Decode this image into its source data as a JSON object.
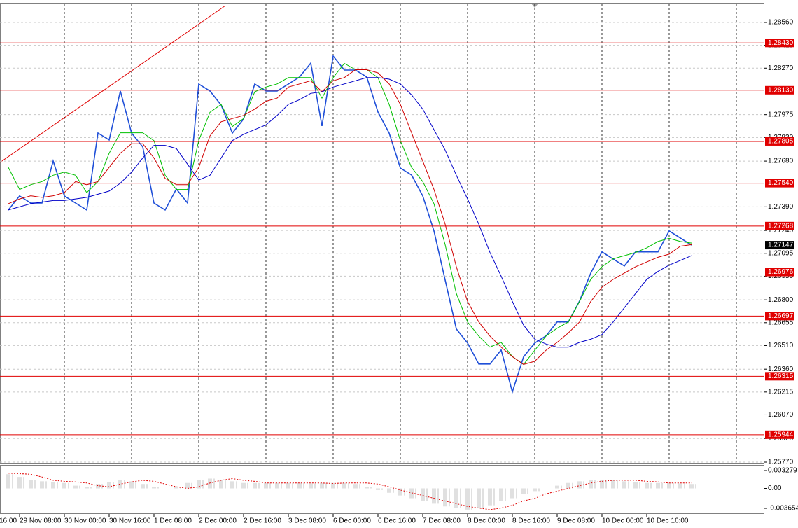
{
  "chart_data": [
    {
      "type": "line",
      "categories": [
        null,
        "29 Nov 08:00",
        null,
        null,
        null,
        "30 Nov 00:00",
        null,
        null,
        null,
        "30 Nov 16:00",
        null,
        null,
        null,
        "1 Dec 08:00",
        null,
        null,
        null,
        "2 Dec 00:00",
        null,
        null,
        null,
        "2 Dec 16:00",
        null,
        null,
        null,
        "3 Dec 08:00",
        null,
        null,
        null,
        "6 Dec 00:00",
        null,
        null,
        null,
        "6 Dec 16:00",
        null,
        null,
        null,
        "7 Dec 08:00",
        null,
        null,
        null,
        "8 Dec 00:00",
        null,
        null,
        null,
        "8 Dec 16:00",
        null,
        null,
        null,
        "9 Dec 08:00",
        null,
        null,
        null,
        "10 Dec 00:00",
        null,
        null,
        null,
        "10 Dec 16:00",
        null,
        null,
        null,
        null
      ],
      "x_edge_label": "16:00",
      "series": [
        {
          "color": "#1f4fd8",
          "values": [
            1.2737,
            1.27459,
            1.27414,
            1.27414,
            1.27681,
            1.27459,
            1.27414,
            1.2737,
            1.27858,
            1.27814,
            1.28125,
            1.27858,
            1.2777,
            1.27414,
            1.2737,
            1.27503,
            1.27414,
            1.28169,
            1.28125,
            1.28036,
            1.27858,
            1.27947,
            1.28169,
            1.28125,
            1.28125,
            1.28169,
            1.28214,
            1.28302,
            1.27903,
            1.28347,
            1.28258,
            1.28258,
            1.28214,
            1.27992,
            1.27858,
            1.27636,
            1.27592,
            1.27459,
            1.27237,
            1.26926,
            1.26615,
            1.26526,
            1.26393,
            1.26393,
            1.26482,
            1.26216,
            1.26438,
            1.26526,
            1.26571,
            1.2666,
            1.2666,
            1.26793,
            1.2697,
            1.27104,
            1.27059,
            1.27015,
            1.27104,
            1.27104,
            1.27104,
            1.27237,
            1.27192,
            1.27147
          ]
        },
        {
          "color": "#00c000",
          "values": [
            1.2764,
            1.275,
            1.2753,
            1.2755,
            1.2759,
            1.2761,
            1.2759,
            1.2748,
            1.2755,
            1.2773,
            1.2786,
            1.2786,
            1.2786,
            1.2781,
            1.2759,
            1.275,
            1.275,
            1.2781,
            1.2799,
            1.2804,
            1.279,
            1.2795,
            1.2812,
            1.2815,
            1.2817,
            1.2821,
            1.2821,
            1.2821,
            1.2808,
            1.2821,
            1.283,
            1.2826,
            1.2826,
            1.2821,
            1.2804,
            1.2781,
            1.2764,
            1.2755,
            1.2741,
            1.2715,
            1.2684,
            1.2666,
            1.2657,
            1.265,
            1.2653,
            1.2644,
            1.2639,
            1.2648,
            1.2657,
            1.2662,
            1.2666,
            1.2679,
            1.2693,
            1.2701,
            1.2706,
            1.2708,
            1.271,
            1.2713,
            1.2717,
            1.2719,
            1.2717,
            1.2716
          ]
        },
        {
          "color": "#d00000",
          "values": [
            1.2741,
            1.2744,
            1.2746,
            1.2745,
            1.2746,
            1.2748,
            1.2755,
            1.2753,
            1.2755,
            1.2764,
            1.2773,
            1.2779,
            1.2779,
            1.277,
            1.2757,
            1.2753,
            1.2753,
            1.2764,
            1.2784,
            1.2793,
            1.2795,
            1.2797,
            1.2801,
            1.2806,
            1.2808,
            1.2815,
            1.2817,
            1.2819,
            1.2812,
            1.2819,
            1.2821,
            1.2826,
            1.2826,
            1.2824,
            1.2817,
            1.2804,
            1.2786,
            1.2768,
            1.275,
            1.2728,
            1.2701,
            1.2679,
            1.2666,
            1.2657,
            1.265,
            1.2644,
            1.2639,
            1.2641,
            1.2648,
            1.2653,
            1.2659,
            1.2666,
            1.2679,
            1.2688,
            1.2693,
            1.2697,
            1.2701,
            1.2704,
            1.2707,
            1.2709,
            1.2714,
            1.2715
          ]
        },
        {
          "color": "#0000c8",
          "values": [
            1.2737,
            1.2739,
            1.2741,
            1.2742,
            1.2743,
            1.2743,
            1.2744,
            1.2745,
            1.2747,
            1.2749,
            1.2754,
            1.2761,
            1.277,
            1.2778,
            1.2778,
            1.2776,
            1.2766,
            1.2756,
            1.2759,
            1.277,
            1.2781,
            1.2785,
            1.2788,
            1.2791,
            1.2797,
            1.2804,
            1.2807,
            1.2811,
            1.2812,
            1.2815,
            1.2817,
            1.2819,
            1.2821,
            1.2821,
            1.282,
            1.2817,
            1.281,
            1.2801,
            1.2788,
            1.2775,
            1.2759,
            1.2744,
            1.2728,
            1.271,
            1.2695,
            1.2679,
            1.2664,
            1.2655,
            1.2652,
            1.265,
            1.265,
            1.2653,
            1.2655,
            1.2658,
            1.2666,
            1.2675,
            1.2684,
            1.2693,
            1.2698,
            1.2702,
            1.2705,
            1.2708
          ]
        }
      ],
      "ylim": [
        1.2577,
        1.2868
      ],
      "yticks": [
        {
          "value": 1.2856,
          "label": "1.28560"
        },
        1.28415,
        {
          "value": 1.2827,
          "label": "1.28270"
        },
        1.27975,
        {
          "value": 1.2783,
          "label": "1.27830"
        },
        {
          "value": 1.2768,
          "label": "1.27680"
        },
        {
          "value": 1.2739,
          "label": "1.27390"
        },
        {
          "value": 1.2724,
          "label": "1.27240"
        },
        1.27095,
        {
          "value": 1.2695,
          "label": "1.26950"
        },
        {
          "value": 1.268,
          "label": "1.26800"
        },
        1.26655,
        {
          "value": 1.2651,
          "label": "1.26510"
        },
        {
          "value": 1.2636,
          "label": "1.26360"
        },
        1.26215,
        {
          "value": 1.2607,
          "label": "1.26070"
        },
        {
          "value": 1.2592,
          "label": "1.25920"
        },
        {
          "value": 1.2577,
          "label": "1.25770"
        }
      ],
      "grid": true,
      "level_color": "#e00000",
      "levels": [
        {
          "value": 1.2843,
          "label": "1.28430"
        },
        {
          "value": 1.2813,
          "label": "1.28130"
        },
        1.27805,
        {
          "value": 1.2754,
          "label": "1.27540"
        },
        1.27268,
        1.26976,
        1.26697,
        1.26315,
        1.25944
      ],
      "current_price": 1.27147
    },
    {
      "type": "bar",
      "series": [
        {
          "kind": "bar",
          "color": "#c0c0c0",
          "values": [
            0.0026,
            0.0021,
            0.0015,
            0.0013,
            0.0012,
            0.001,
            0.0005,
            0.0003,
            0.0008,
            0.0012,
            0.0015,
            0.0013,
            0.0008,
            0.0003,
            0,
            0.0003,
            0.001,
            0.0015,
            0.0018,
            0.0015,
            0.0013,
            0.001,
            0.001,
            0.001,
            0.001,
            0.001,
            0.001,
            0.0009,
            0.001,
            0.001,
            0.001,
            0.0008,
            0.0003,
            -0.0003,
            -0.0008,
            -0.0013,
            -0.0018,
            -0.0023,
            -0.0028,
            -0.0033,
            -0.0036,
            -0.0039,
            -0.0036,
            -0.0031,
            -0.0023,
            -0.0018,
            -0.001,
            -0.0005,
            0,
            0.0005,
            0.001,
            0.0013,
            0.0015,
            0.0015,
            0.0015,
            0.0013,
            0.0012,
            0.001,
            0.001,
            0.001,
            0.0009,
            0.0008
          ]
        },
        {
          "kind": "line",
          "color": "#e00000",
          "values": [
            0.0028,
            0.0027,
            0.0026,
            0.0021,
            0.0015,
            0.0013,
            0.0012,
            0.001,
            0.0005,
            0.0003,
            0.0008,
            0.0012,
            0.0015,
            0.0013,
            0.0008,
            0.0003,
            0,
            0.0003,
            0.001,
            0.0015,
            0.0018,
            0.0015,
            0.0013,
            0.001,
            0.001,
            0.001,
            0.001,
            0.001,
            0.001,
            0.0009,
            0.001,
            0.001,
            0.001,
            0.0008,
            0.0003,
            -0.0003,
            -0.0008,
            -0.0013,
            -0.0018,
            -0.0023,
            -0.0028,
            -0.0033,
            -0.0036,
            -0.0039,
            -0.0036,
            -0.0031,
            -0.0023,
            -0.0018,
            -0.001,
            -0.0005,
            0,
            0.0005,
            0.001,
            0.0013,
            0.0015,
            0.0015,
            0.0015,
            0.0013,
            0.0012,
            0.001,
            0.001,
            0.001
          ]
        }
      ],
      "ylim": [
        -0.003654,
        0.003279
      ],
      "yticks": [
        0.003279,
        {
          "value": 0,
          "label": "0.00"
        },
        -0.003654
      ]
    }
  ]
}
